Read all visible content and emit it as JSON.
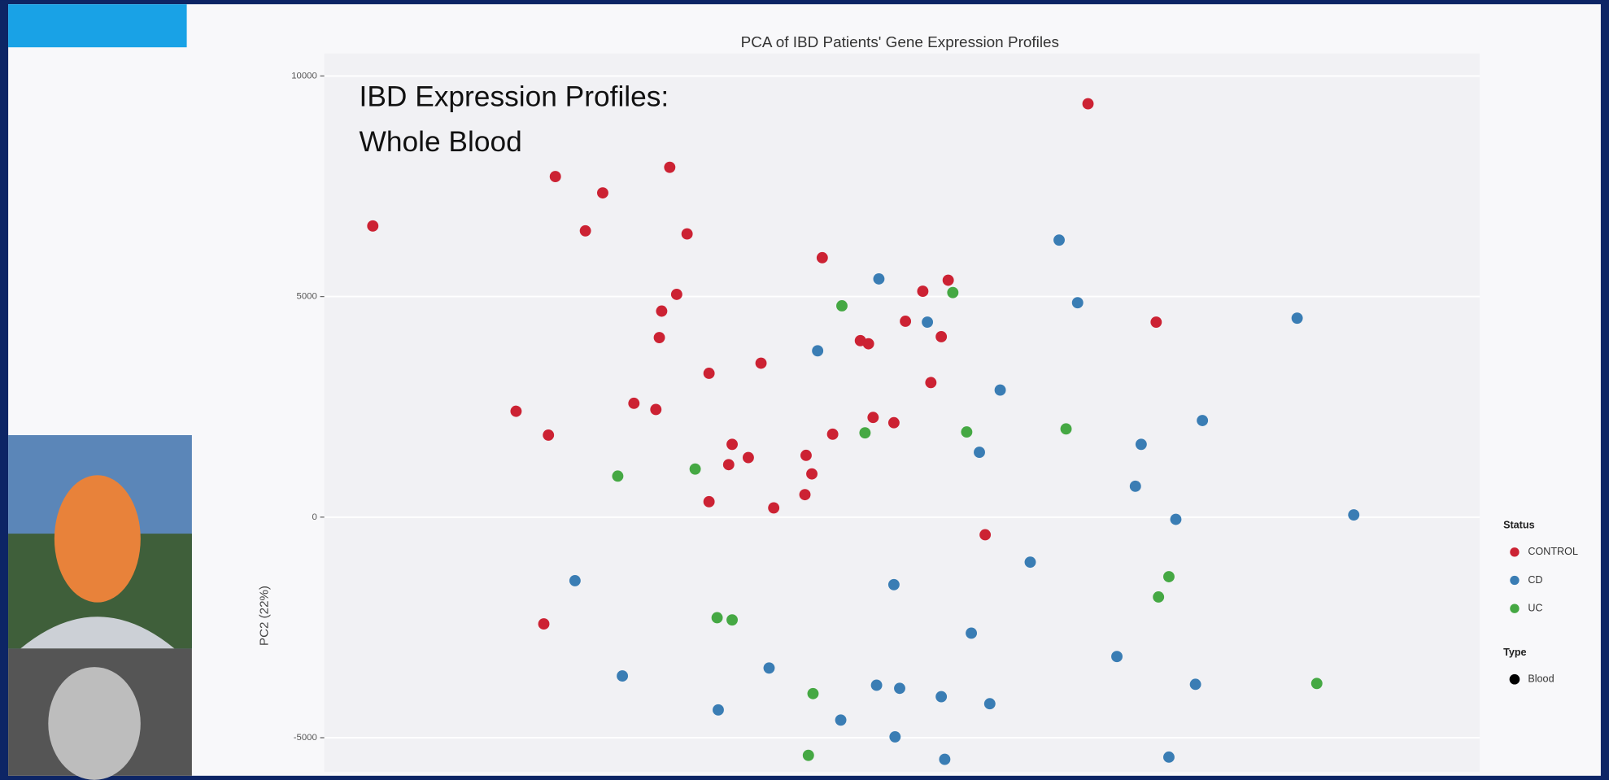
{
  "chart_data": {
    "type": "scatter",
    "title": "PCA of IBD Patients' Gene Expression Profiles",
    "annotation": [
      "IBD Expression Profiles:",
      "Whole Blood"
    ],
    "ylabel": "PC2 (22%)",
    "legend_title": "Status",
    "shape_legend": {
      "title": "Type",
      "labels": [
        "Blood"
      ]
    },
    "legend_position": "right",
    "grid": true,
    "xlim": [
      0,
      100
    ],
    "ylim": [
      -5770,
      10510
    ],
    "yticks": [
      -5000,
      0,
      5000,
      10000
    ],
    "series": [
      {
        "name": "CONTROL",
        "color": "#cc2233",
        "x": [
          4.2,
          20.0,
          24.1,
          22.6,
          29.9,
          31.4,
          29.2,
          30.5,
          29.0,
          43.1,
          66.1,
          54.0,
          51.8,
          50.3,
          53.4,
          46.4,
          47.1,
          72.0,
          37.8,
          33.3,
          52.5,
          26.8,
          28.7,
          16.6,
          19.4,
          47.5,
          49.3,
          44.0,
          35.3,
          36.7,
          35.0,
          41.7,
          42.2,
          33.3,
          38.9,
          41.6,
          57.2,
          19.0
        ],
        "values": [
          6600,
          7720,
          7350,
          6490,
          7930,
          6420,
          4670,
          5050,
          4070,
          5880,
          9370,
          5370,
          5120,
          4440,
          4090,
          4000,
          3930,
          4420,
          3490,
          3260,
          3050,
          2580,
          2440,
          2400,
          1860,
          2260,
          2140,
          1880,
          1650,
          1350,
          1190,
          1400,
          980,
          350,
          210,
          510,
          -400,
          -2420
        ]
      },
      {
        "name": "CD",
        "color": "#3a7db4",
        "x": [
          63.6,
          48.0,
          52.2,
          65.2,
          84.2,
          42.7,
          58.5,
          76.0,
          56.7,
          70.7,
          70.2,
          73.7,
          89.1,
          61.1,
          21.7,
          49.3,
          56.0,
          68.6,
          25.8,
          38.5,
          47.8,
          49.8,
          75.4,
          53.4,
          57.6,
          34.1,
          44.7,
          49.4,
          53.7,
          73.1
        ],
        "values": [
          6280,
          5400,
          4420,
          4860,
          4510,
          3770,
          2880,
          2190,
          1470,
          1650,
          700,
          -50,
          50,
          -1020,
          -1440,
          -1530,
          -2630,
          -3160,
          -3600,
          -3420,
          -3810,
          -3880,
          -3790,
          -4070,
          -4230,
          -4370,
          -4600,
          -4980,
          -5490,
          -5440
        ]
      },
      {
        "name": "UC",
        "color": "#45a843",
        "x": [
          44.8,
          54.4,
          46.8,
          55.6,
          64.2,
          25.4,
          32.1,
          73.1,
          72.2,
          34.0,
          35.3,
          42.3,
          85.9,
          41.9
        ],
        "values": [
          4790,
          5090,
          1910,
          1930,
          2000,
          930,
          1090,
          -1350,
          -1810,
          -2280,
          -2330,
          -4000,
          -3770,
          -5400
        ]
      }
    ]
  }
}
